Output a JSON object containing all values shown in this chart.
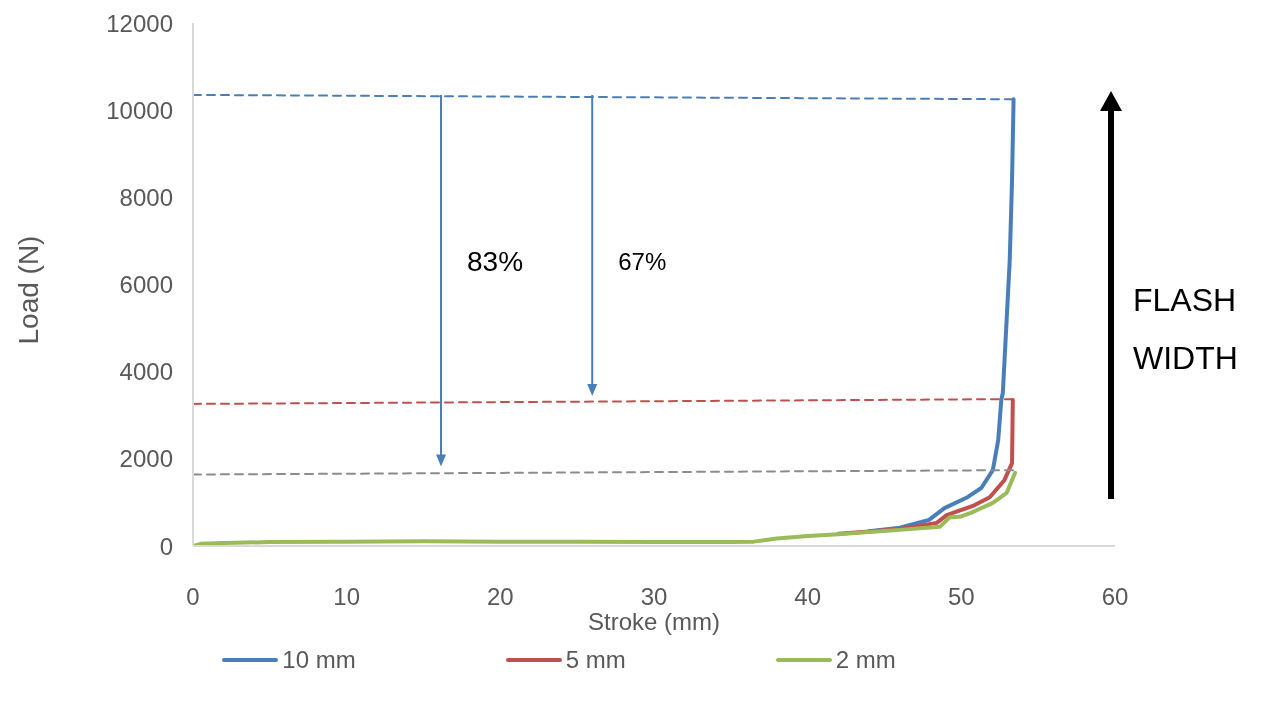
{
  "chart_data": {
    "type": "line",
    "xlabel": "Stroke (mm)",
    "ylabel": "Load (N)",
    "xlim": [
      0,
      60
    ],
    "xticks": [
      0,
      10,
      20,
      30,
      40,
      50,
      60
    ],
    "ylim": [
      0,
      12000
    ],
    "yticks": [
      0,
      2000,
      4000,
      6000,
      8000,
      10000,
      12000
    ],
    "grid": false,
    "legend": "bottom",
    "marker": "none",
    "line_style": "solid",
    "series": [
      {
        "name": "10 mm",
        "color": "#4a7ebb",
        "x": [
          44,
          46,
          47.9,
          48.9,
          50.4,
          51.3,
          52.05,
          52.4,
          52.6,
          52.7,
          53.15,
          53.3,
          53.4
        ],
        "values": [
          340,
          420,
          600,
          870,
          1120,
          1330,
          1740,
          2430,
          3350,
          3510,
          6560,
          8400,
          10250
        ]
      },
      {
        "name": "5 mm",
        "color": "#c0504d",
        "x": [
          42,
          44,
          46,
          48.4,
          49.05,
          49.45,
          50.75,
          51.85,
          52.8,
          53.3,
          53.35
        ],
        "values": [
          280,
          330,
          390,
          530,
          710,
          760,
          920,
          1120,
          1510,
          1900,
          3350
        ]
      },
      {
        "name": "2 mm",
        "color": "#9bbb59",
        "x": [
          0,
          0.5,
          2,
          5,
          10,
          15,
          20,
          25,
          30,
          35,
          36.5,
          38,
          40,
          42,
          44,
          46,
          48.6,
          49.25,
          49.9,
          50.75,
          52.05,
          52.95,
          53.5
        ],
        "values": [
          0,
          50,
          70,
          90,
          100,
          110,
          100,
          100,
          90,
          90,
          100,
          170,
          230,
          270,
          320,
          370,
          440,
          660,
          670,
          780,
          990,
          1220,
          1680
        ]
      },
      {
        "color": "#4a7ebb",
        "line_style": "dashed",
        "x": [
          0,
          53.4
        ],
        "values": [
          10350,
          10250
        ]
      },
      {
        "color": "#c0504d",
        "line_style": "dashed",
        "x": [
          0,
          53.4
        ],
        "values": [
          3260,
          3370
        ]
      },
      {
        "color": "#8c8c8c",
        "line_style": "dashed",
        "x": [
          0,
          53.5
        ],
        "values": [
          1640,
          1740
        ]
      }
    ],
    "annotations": [
      "83%",
      "67%",
      "FLASH WIDTH"
    ]
  }
}
